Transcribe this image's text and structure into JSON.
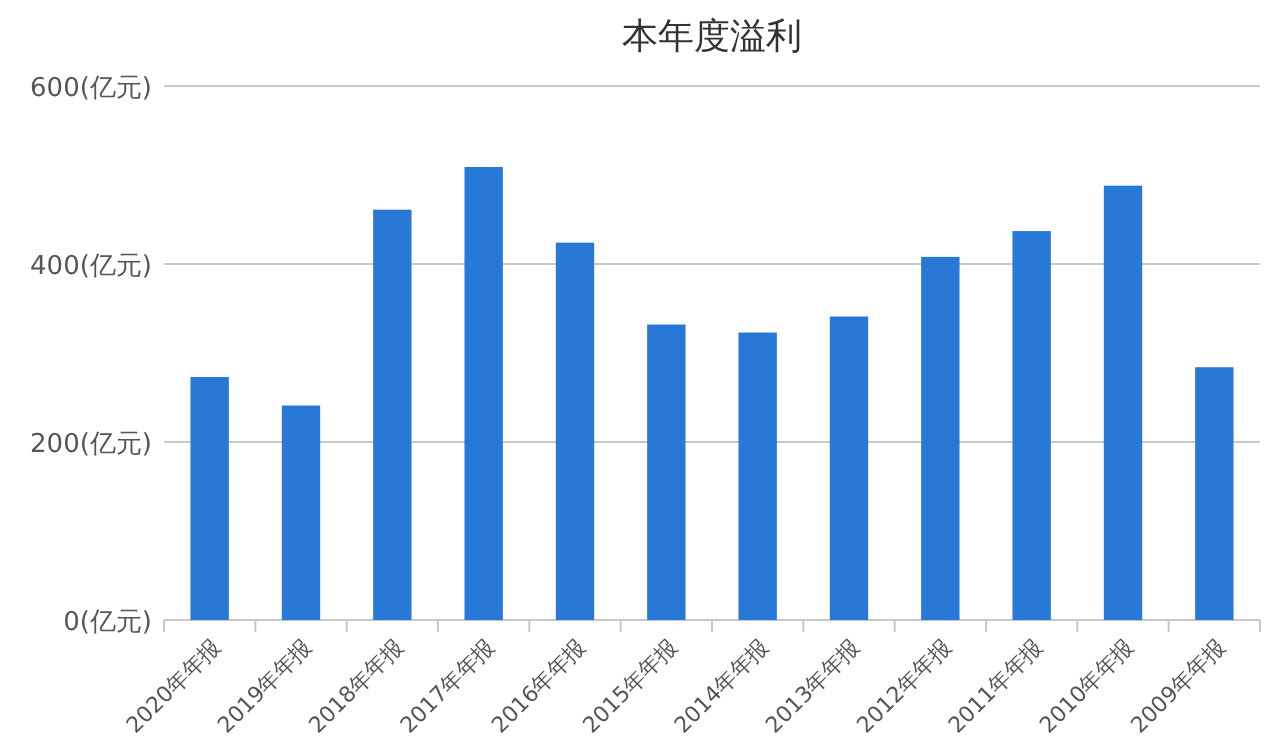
{
  "chart_data": {
    "type": "bar",
    "title": "本年度溢利",
    "categories": [
      "2020年年报",
      "2019年年报",
      "2018年年报",
      "2017年年报",
      "2016年年报",
      "2015年年报",
      "2014年年报",
      "2013年年报",
      "2012年年报",
      "2011年年报",
      "2010年年报",
      "2009年年报"
    ],
    "values": [
      273,
      241,
      461,
      509,
      424,
      332,
      323,
      341,
      408,
      437,
      488,
      284
    ],
    "color": "#2878d8",
    "ylim": [
      0,
      600
    ],
    "yticks": [
      {
        "value": 0,
        "label": "0(亿元)"
      },
      {
        "value": 200,
        "label": "200(亿元)"
      },
      {
        "value": 400,
        "label": "400(亿元)"
      },
      {
        "value": 600,
        "label": "600(亿元)"
      }
    ],
    "grid": "y"
  }
}
